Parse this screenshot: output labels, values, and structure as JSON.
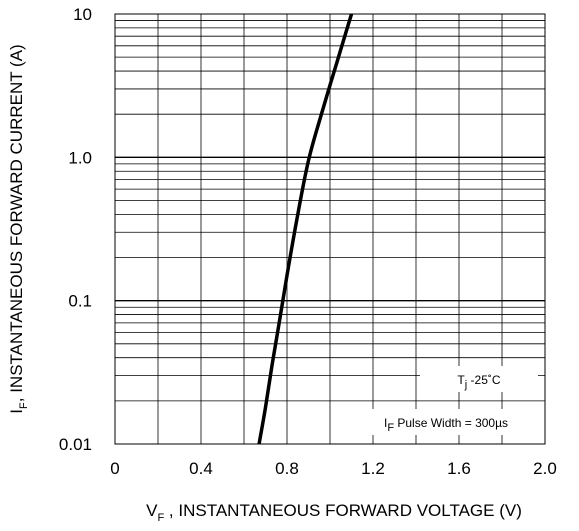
{
  "chart_data": {
    "type": "line",
    "y_scale": "log",
    "grid": true,
    "xlim": [
      0,
      2.0
    ],
    "ylim": [
      0.01,
      10
    ],
    "x_ticks": [
      "0",
      "0.4",
      "0.8",
      "1.2",
      "1.6",
      "2.0"
    ],
    "x_tick_values": [
      0,
      0.4,
      0.8,
      1.2,
      1.6,
      2.0
    ],
    "y_ticks": [
      "0.01",
      "0.1",
      "1.0",
      "10"
    ],
    "y_tick_values": [
      0.01,
      0.1,
      1.0,
      10
    ],
    "xlabel": {
      "symbol": "V",
      "subscript": "F",
      "text": " , INSTANTANEOUS FORWARD VOLTAGE (V)"
    },
    "ylabel": {
      "symbol": "I",
      "subscript": "F",
      "text": ", INSTANTANEOUS FORWARD CURRENT (A)"
    },
    "annotations": {
      "tj": {
        "symbol": "T",
        "subscript": "j",
        "text": " -25˚C"
      },
      "pulse": {
        "symbol": "I",
        "subscript": "F",
        "text": " Pulse Width = 300µs"
      }
    },
    "series": [
      {
        "x": [
          0.67,
          0.7,
          0.73,
          0.76,
          0.8,
          0.85,
          0.9,
          0.96,
          1.03,
          1.1
        ],
        "y": [
          0.01,
          0.018,
          0.035,
          0.065,
          0.15,
          0.4,
          0.95,
          2.0,
          4.5,
          10
        ]
      }
    ]
  }
}
